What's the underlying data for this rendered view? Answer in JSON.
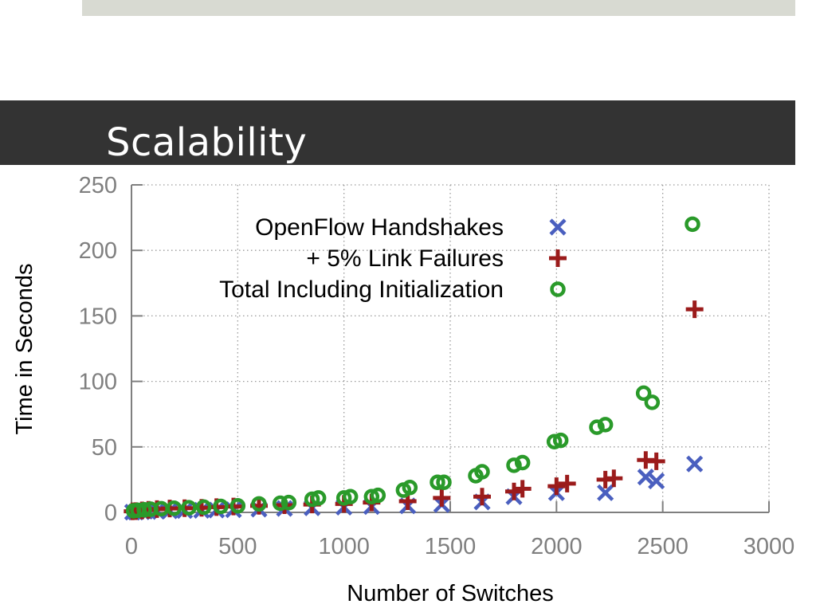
{
  "slide": {
    "title": "Scalability"
  },
  "colors": {
    "handshakes": "#4a5fbf",
    "failures": "#9b1b1b",
    "total": "#2a9a2a",
    "title_bar": "#333333",
    "top_band": "#d8dad2"
  },
  "chart_data": {
    "type": "scatter",
    "xlabel": "Number of Switches",
    "ylabel": "Time in Seconds",
    "xlim": [
      0,
      3000
    ],
    "ylim": [
      0,
      250
    ],
    "xticks": [
      0,
      500,
      1000,
      1500,
      2000,
      2500,
      3000
    ],
    "yticks": [
      0,
      50,
      100,
      150,
      200,
      250
    ],
    "grid": true,
    "legend_position": "top-left",
    "series": [
      {
        "name": "OpenFlow Handshakes",
        "marker": "x",
        "x": [
          5,
          20,
          50,
          80,
          120,
          180,
          250,
          330,
          400,
          480,
          600,
          720,
          850,
          1000,
          1130,
          1300,
          1460,
          1650,
          1800,
          2000,
          2230,
          2420,
          2470,
          2650
        ],
        "y": [
          0.2,
          0.3,
          0.5,
          0.7,
          1,
          1.2,
          1.4,
          1.6,
          1.8,
          2,
          2.5,
          3,
          3.5,
          4,
          4.5,
          5,
          6,
          8,
          12,
          15,
          15,
          27,
          24,
          37
        ]
      },
      {
        "name": "+ 5% Link Failures",
        "marker": "+",
        "x": [
          5,
          20,
          50,
          80,
          120,
          180,
          250,
          330,
          400,
          480,
          600,
          720,
          850,
          1000,
          1130,
          1300,
          1460,
          1650,
          1800,
          1840,
          2000,
          2050,
          2230,
          2270,
          2420,
          2470,
          2650
        ],
        "y": [
          0.8,
          1,
          1.5,
          2,
          2.5,
          3,
          3.2,
          3.5,
          4,
          4.5,
          5,
          5.5,
          6,
          6.5,
          7.5,
          8.5,
          11,
          12,
          16,
          18,
          20,
          22,
          25,
          26,
          40,
          39,
          155
        ]
      },
      {
        "name": "Total Including Initialization",
        "marker": "o",
        "x": [
          10,
          30,
          60,
          90,
          140,
          200,
          270,
          340,
          420,
          500,
          600,
          700,
          740,
          850,
          880,
          1000,
          1030,
          1130,
          1160,
          1280,
          1310,
          1440,
          1470,
          1620,
          1650,
          1800,
          1840,
          1990,
          2020,
          2190,
          2230,
          2410,
          2450,
          2640
        ],
        "y": [
          1.2,
          1.6,
          2,
          2.4,
          2.8,
          3.2,
          3.6,
          4,
          4.6,
          5,
          6.5,
          7,
          7.5,
          10,
          11,
          11,
          12,
          12,
          13,
          17,
          19,
          23,
          23,
          28,
          31,
          36,
          38,
          54,
          55,
          65,
          67,
          91,
          84,
          220
        ]
      }
    ]
  }
}
